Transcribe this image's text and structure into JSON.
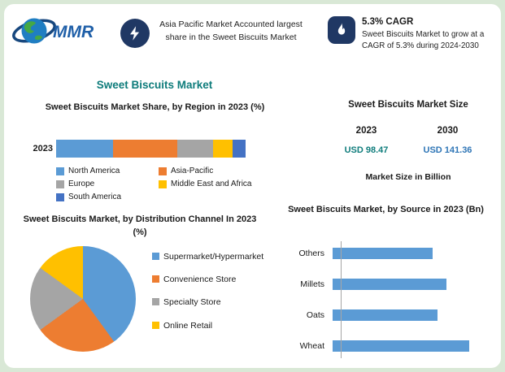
{
  "colors": {
    "accent_teal": "#0e7c7b",
    "accent_blue": "#2e75b6",
    "badge_navy": "#203864",
    "frame_green": "#d9e8d6"
  },
  "header": {
    "logo_text": "MMR",
    "highlight_text": "Asia Pacific Market Accounted largest share in the Sweet Biscuits Market",
    "cagr_title": "5.3% CAGR",
    "cagr_text": "Sweet Biscuits Market to grow at a CAGR of 5.3% during 2024-2030"
  },
  "main_title": "Sweet Biscuits Market",
  "market_size": {
    "title": "Sweet Biscuits Market Size",
    "columns": [
      {
        "year": "2023",
        "value": "USD 98.47"
      },
      {
        "year": "2030",
        "value": "USD 141.36"
      }
    ],
    "note": "Market Size in Billion"
  },
  "chart_data": [
    {
      "type": "bar",
      "variant": "stacked-horizontal",
      "title": "Sweet Biscuits Market Share, by Region in 2023 (%)",
      "categories": [
        "2023"
      ],
      "series": [
        {
          "name": "North America",
          "values": [
            30
          ],
          "color": "#5b9bd5"
        },
        {
          "name": "Asia-Pacific",
          "values": [
            34
          ],
          "color": "#ed7d31"
        },
        {
          "name": "Europe",
          "values": [
            19
          ],
          "color": "#a5a5a5"
        },
        {
          "name": "Middle East and Africa",
          "values": [
            10
          ],
          "color": "#ffc000"
        },
        {
          "name": "South America",
          "values": [
            7
          ],
          "color": "#4472c4"
        }
      ],
      "xlim": [
        0,
        100
      ],
      "legend_position": "bottom"
    },
    {
      "type": "pie",
      "title": "Sweet Biscuits Market, by Distribution Channel In 2023 (%)",
      "labels": [
        "Supermarket/Hypermarket",
        "Convenience Store",
        "Specialty Store",
        "Online Retail"
      ],
      "values": [
        40,
        25,
        20,
        15
      ],
      "colors": [
        "#5b9bd5",
        "#ed7d31",
        "#a5a5a5",
        "#ffc000"
      ],
      "legend_position": "right"
    },
    {
      "type": "bar",
      "variant": "horizontal",
      "title": "Sweet Biscuits Market, by Source in 2023 (Bn)",
      "categories": [
        "Others",
        "Millets",
        "Oats",
        "Wheat"
      ],
      "values": [
        22,
        25,
        23,
        30
      ],
      "color": "#5b9bd5",
      "xlim": [
        0,
        36
      ]
    }
  ]
}
